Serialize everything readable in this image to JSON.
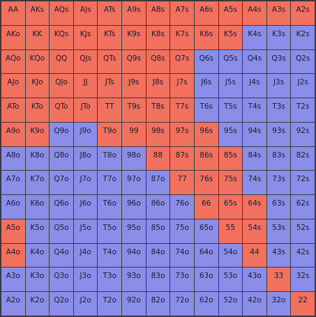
{
  "colors": {
    "raise": "#f2705e",
    "fold": "#8b8ee8"
  },
  "rows": [
    [
      "AA",
      "AKs",
      "AQs",
      "AJs",
      "ATs",
      "A9s",
      "A8s",
      "A7s",
      "A6s",
      "A5s",
      "A4s",
      "A3s",
      "A2s"
    ],
    [
      "AKo",
      "KK",
      "KQs",
      "KJs",
      "KTs",
      "K9s",
      "K8s",
      "K7s",
      "K6s",
      "K5s",
      "K4s",
      "K3s",
      "K2s"
    ],
    [
      "AQo",
      "KQo",
      "QQ",
      "QJs",
      "QTs",
      "Q9s",
      "Q8s",
      "Q7s",
      "Q6s",
      "Q5s",
      "Q4s",
      "Q3s",
      "Q2s"
    ],
    [
      "AJo",
      "KJo",
      "QJo",
      "JJ",
      "JTs",
      "J9s",
      "J8s",
      "J7s",
      "J6s",
      "J5s",
      "J4s",
      "J3s",
      "J2s"
    ],
    [
      "ATo",
      "KTo",
      "QTo",
      "JTo",
      "TT",
      "T9s",
      "T8s",
      "T7s",
      "T6s",
      "T5s",
      "T4s",
      "T3s",
      "T2s"
    ],
    [
      "A9o",
      "K9o",
      "Q9o",
      "J9o",
      "T9o",
      "99",
      "98s",
      "97s",
      "96s",
      "95s",
      "94s",
      "93s",
      "92s"
    ],
    [
      "A8o",
      "K8o",
      "Q8o",
      "J8o",
      "T8o",
      "98o",
      "88",
      "87s",
      "86s",
      "85s",
      "84s",
      "83s",
      "82s"
    ],
    [
      "A7o",
      "K7o",
      "Q7o",
      "J7o",
      "T7o",
      "97o",
      "87o",
      "77",
      "76s",
      "75s",
      "74s",
      "73s",
      "72s"
    ],
    [
      "A6o",
      "K6o",
      "Q6o",
      "J6o",
      "T6o",
      "96o",
      "86o",
      "76o",
      "66",
      "65s",
      "64s",
      "63s",
      "62s"
    ],
    [
      "A5o",
      "K5o",
      "Q5o",
      "J5o",
      "T5o",
      "95o",
      "85o",
      "75o",
      "65o",
      "55",
      "54s",
      "53s",
      "52s"
    ],
    [
      "A4o",
      "K4o",
      "Q4o",
      "J4o",
      "T4o",
      "94o",
      "84o",
      "74o",
      "64o",
      "54o",
      "44",
      "43s",
      "42s"
    ],
    [
      "A3o",
      "K3o",
      "Q3o",
      "J3o",
      "T3o",
      "93o",
      "83o",
      "73o",
      "63o",
      "53o",
      "43o",
      "33",
      "32s"
    ],
    [
      "A2o",
      "K2o",
      "Q2o",
      "J2o",
      "T2o",
      "92o",
      "82o",
      "72o",
      "62o",
      "52o",
      "42o",
      "32o",
      "22"
    ]
  ],
  "actions": [
    [
      "R",
      "R",
      "R",
      "R",
      "R",
      "R",
      "R",
      "R",
      "R",
      "R",
      "R",
      "R",
      "R"
    ],
    [
      "R",
      "R",
      "R",
      "R",
      "R",
      "R",
      "R",
      "R",
      "R",
      "R",
      "F",
      "F",
      "F"
    ],
    [
      "R",
      "R",
      "R",
      "R",
      "R",
      "R",
      "R",
      "R",
      "F",
      "F",
      "F",
      "F",
      "F"
    ],
    [
      "R",
      "R",
      "R",
      "R",
      "R",
      "R",
      "R",
      "R",
      "F",
      "F",
      "F",
      "F",
      "F"
    ],
    [
      "R",
      "R",
      "R",
      "R",
      "R",
      "R",
      "R",
      "R",
      "F",
      "F",
      "F",
      "F",
      "F"
    ],
    [
      "R",
      "R",
      "F",
      "F",
      "R",
      "R",
      "R",
      "R",
      "R",
      "F",
      "F",
      "F",
      "F"
    ],
    [
      "F",
      "F",
      "F",
      "F",
      "F",
      "F",
      "R",
      "R",
      "R",
      "R",
      "F",
      "F",
      "F"
    ],
    [
      "F",
      "F",
      "F",
      "F",
      "F",
      "F",
      "F",
      "R",
      "R",
      "R",
      "F",
      "F",
      "F"
    ],
    [
      "F",
      "F",
      "F",
      "F",
      "F",
      "F",
      "F",
      "F",
      "R",
      "R",
      "R",
      "F",
      "F"
    ],
    [
      "R",
      "F",
      "F",
      "F",
      "F",
      "F",
      "F",
      "F",
      "F",
      "R",
      "R",
      "F",
      "F"
    ],
    [
      "R",
      "F",
      "F",
      "F",
      "F",
      "F",
      "F",
      "F",
      "F",
      "F",
      "R",
      "F",
      "F"
    ],
    [
      "F",
      "F",
      "F",
      "F",
      "F",
      "F",
      "F",
      "F",
      "F",
      "F",
      "F",
      "R",
      "F"
    ],
    [
      "F",
      "F",
      "F",
      "F",
      "F",
      "F",
      "F",
      "F",
      "F",
      "F",
      "F",
      "F",
      "R"
    ]
  ]
}
